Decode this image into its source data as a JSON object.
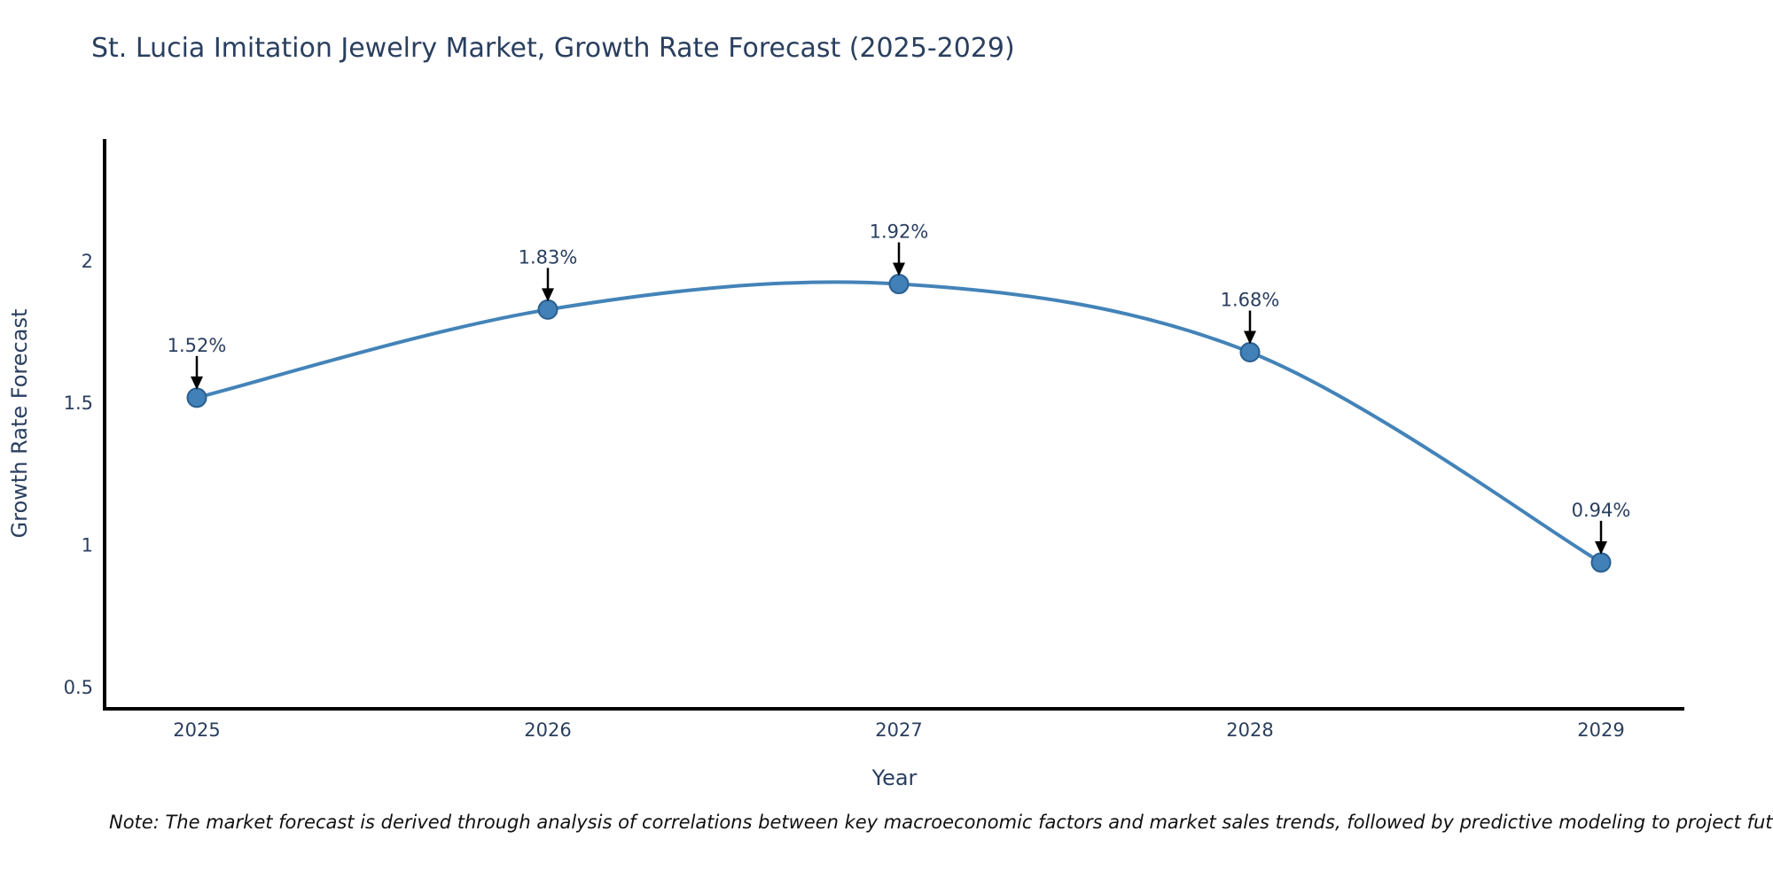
{
  "chart": {
    "note": "Note: The market forecast is derived through analysis of correlations between key macroeconomic factors and market sales trends, followed by predictive modeling to project future sales"
  },
  "chart_data": {
    "type": "line",
    "title": "St. Lucia Imitation Jewelry Market, Growth Rate Forecast (2025-2029)",
    "xlabel": "Year",
    "ylabel": "Growth Rate Forecast",
    "categories": [
      "2025",
      "2026",
      "2027",
      "2028",
      "2029"
    ],
    "values": [
      1.52,
      1.83,
      1.92,
      1.68,
      0.94
    ],
    "point_labels": [
      "1.52%",
      "1.83%",
      "1.92%",
      "1.68%",
      "0.94%"
    ],
    "yticks": [
      0.5,
      1,
      1.5,
      2
    ],
    "ytick_labels": [
      "0.5",
      "1",
      "1.5",
      "2"
    ],
    "ylim": [
      0.425,
      2.43
    ],
    "line_shape": "spline",
    "grid": false,
    "legend": "none",
    "colors": {
      "line": "#4383b8",
      "marker_fill": "#4181b8",
      "marker_edge": "#2a5f8f",
      "text": "#2a3f5f",
      "axis": "#000000",
      "arrow": "#000000",
      "title": "#2a3f5f",
      "note": "#111111"
    }
  }
}
